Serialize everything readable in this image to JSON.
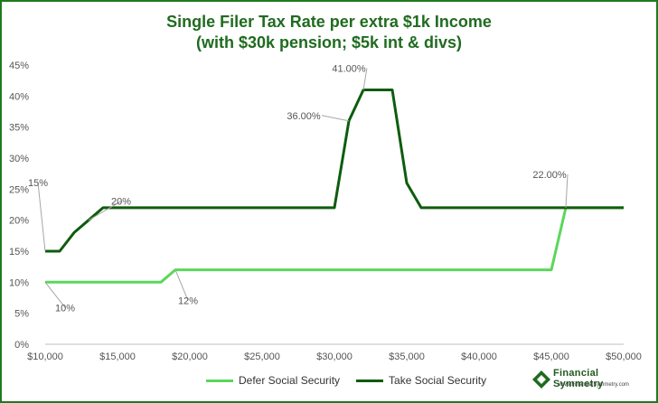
{
  "title_line1": "Single Filer Tax Rate per extra $1k Income",
  "title_line2": "(with $30k pension; $5k int & divs)",
  "brand": {
    "name": "Financial Symmetry",
    "url": "www.FinancialSymmetry.com"
  },
  "colors": {
    "defer": "#5cd65c",
    "take": "#0e5c0e",
    "title": "#1f6b1f"
  },
  "chart_data": {
    "type": "line",
    "xlim": [
      10000,
      50000
    ],
    "ylim": [
      0,
      45
    ],
    "x_ticks": [
      10000,
      15000,
      20000,
      25000,
      30000,
      35000,
      40000,
      45000,
      50000
    ],
    "x_tick_labels": [
      "$10,000",
      "$15,000",
      "$20,000",
      "$25,000",
      "$30,000",
      "$35,000",
      "$40,000",
      "$45,000",
      "$50,000"
    ],
    "y_ticks": [
      0,
      5,
      10,
      15,
      20,
      25,
      30,
      35,
      40,
      45
    ],
    "y_tick_labels": [
      "0%",
      "5%",
      "10%",
      "15%",
      "20%",
      "25%",
      "30%",
      "35%",
      "40%",
      "45%"
    ],
    "grid": false,
    "legend_position": "bottom",
    "series": [
      {
        "name": "Defer Social Security",
        "x": [
          10000,
          18000,
          19000,
          45000,
          46000,
          50000
        ],
        "y": [
          10,
          10,
          12,
          12,
          22,
          22
        ]
      },
      {
        "name": "Take Social Security",
        "x": [
          10000,
          11000,
          12000,
          13000,
          14000,
          30000,
          31000,
          32000,
          33000,
          34000,
          35000,
          36000,
          50000
        ],
        "y": [
          15,
          15,
          18,
          20,
          22,
          22,
          36,
          41,
          41,
          41,
          26,
          22,
          22
        ]
      }
    ],
    "annotations": [
      {
        "text": "10%",
        "x": 10000,
        "y": 10
      },
      {
        "text": "12%",
        "x": 19000,
        "y": 12
      },
      {
        "text": "15%",
        "x": 10000,
        "y": 15
      },
      {
        "text": "20%",
        "x": 13000,
        "y": 20
      },
      {
        "text": "36.00%",
        "x": 31000,
        "y": 36
      },
      {
        "text": "41.00%",
        "x": 32000,
        "y": 41
      },
      {
        "text": "22.00%",
        "x": 46000,
        "y": 22
      }
    ]
  }
}
